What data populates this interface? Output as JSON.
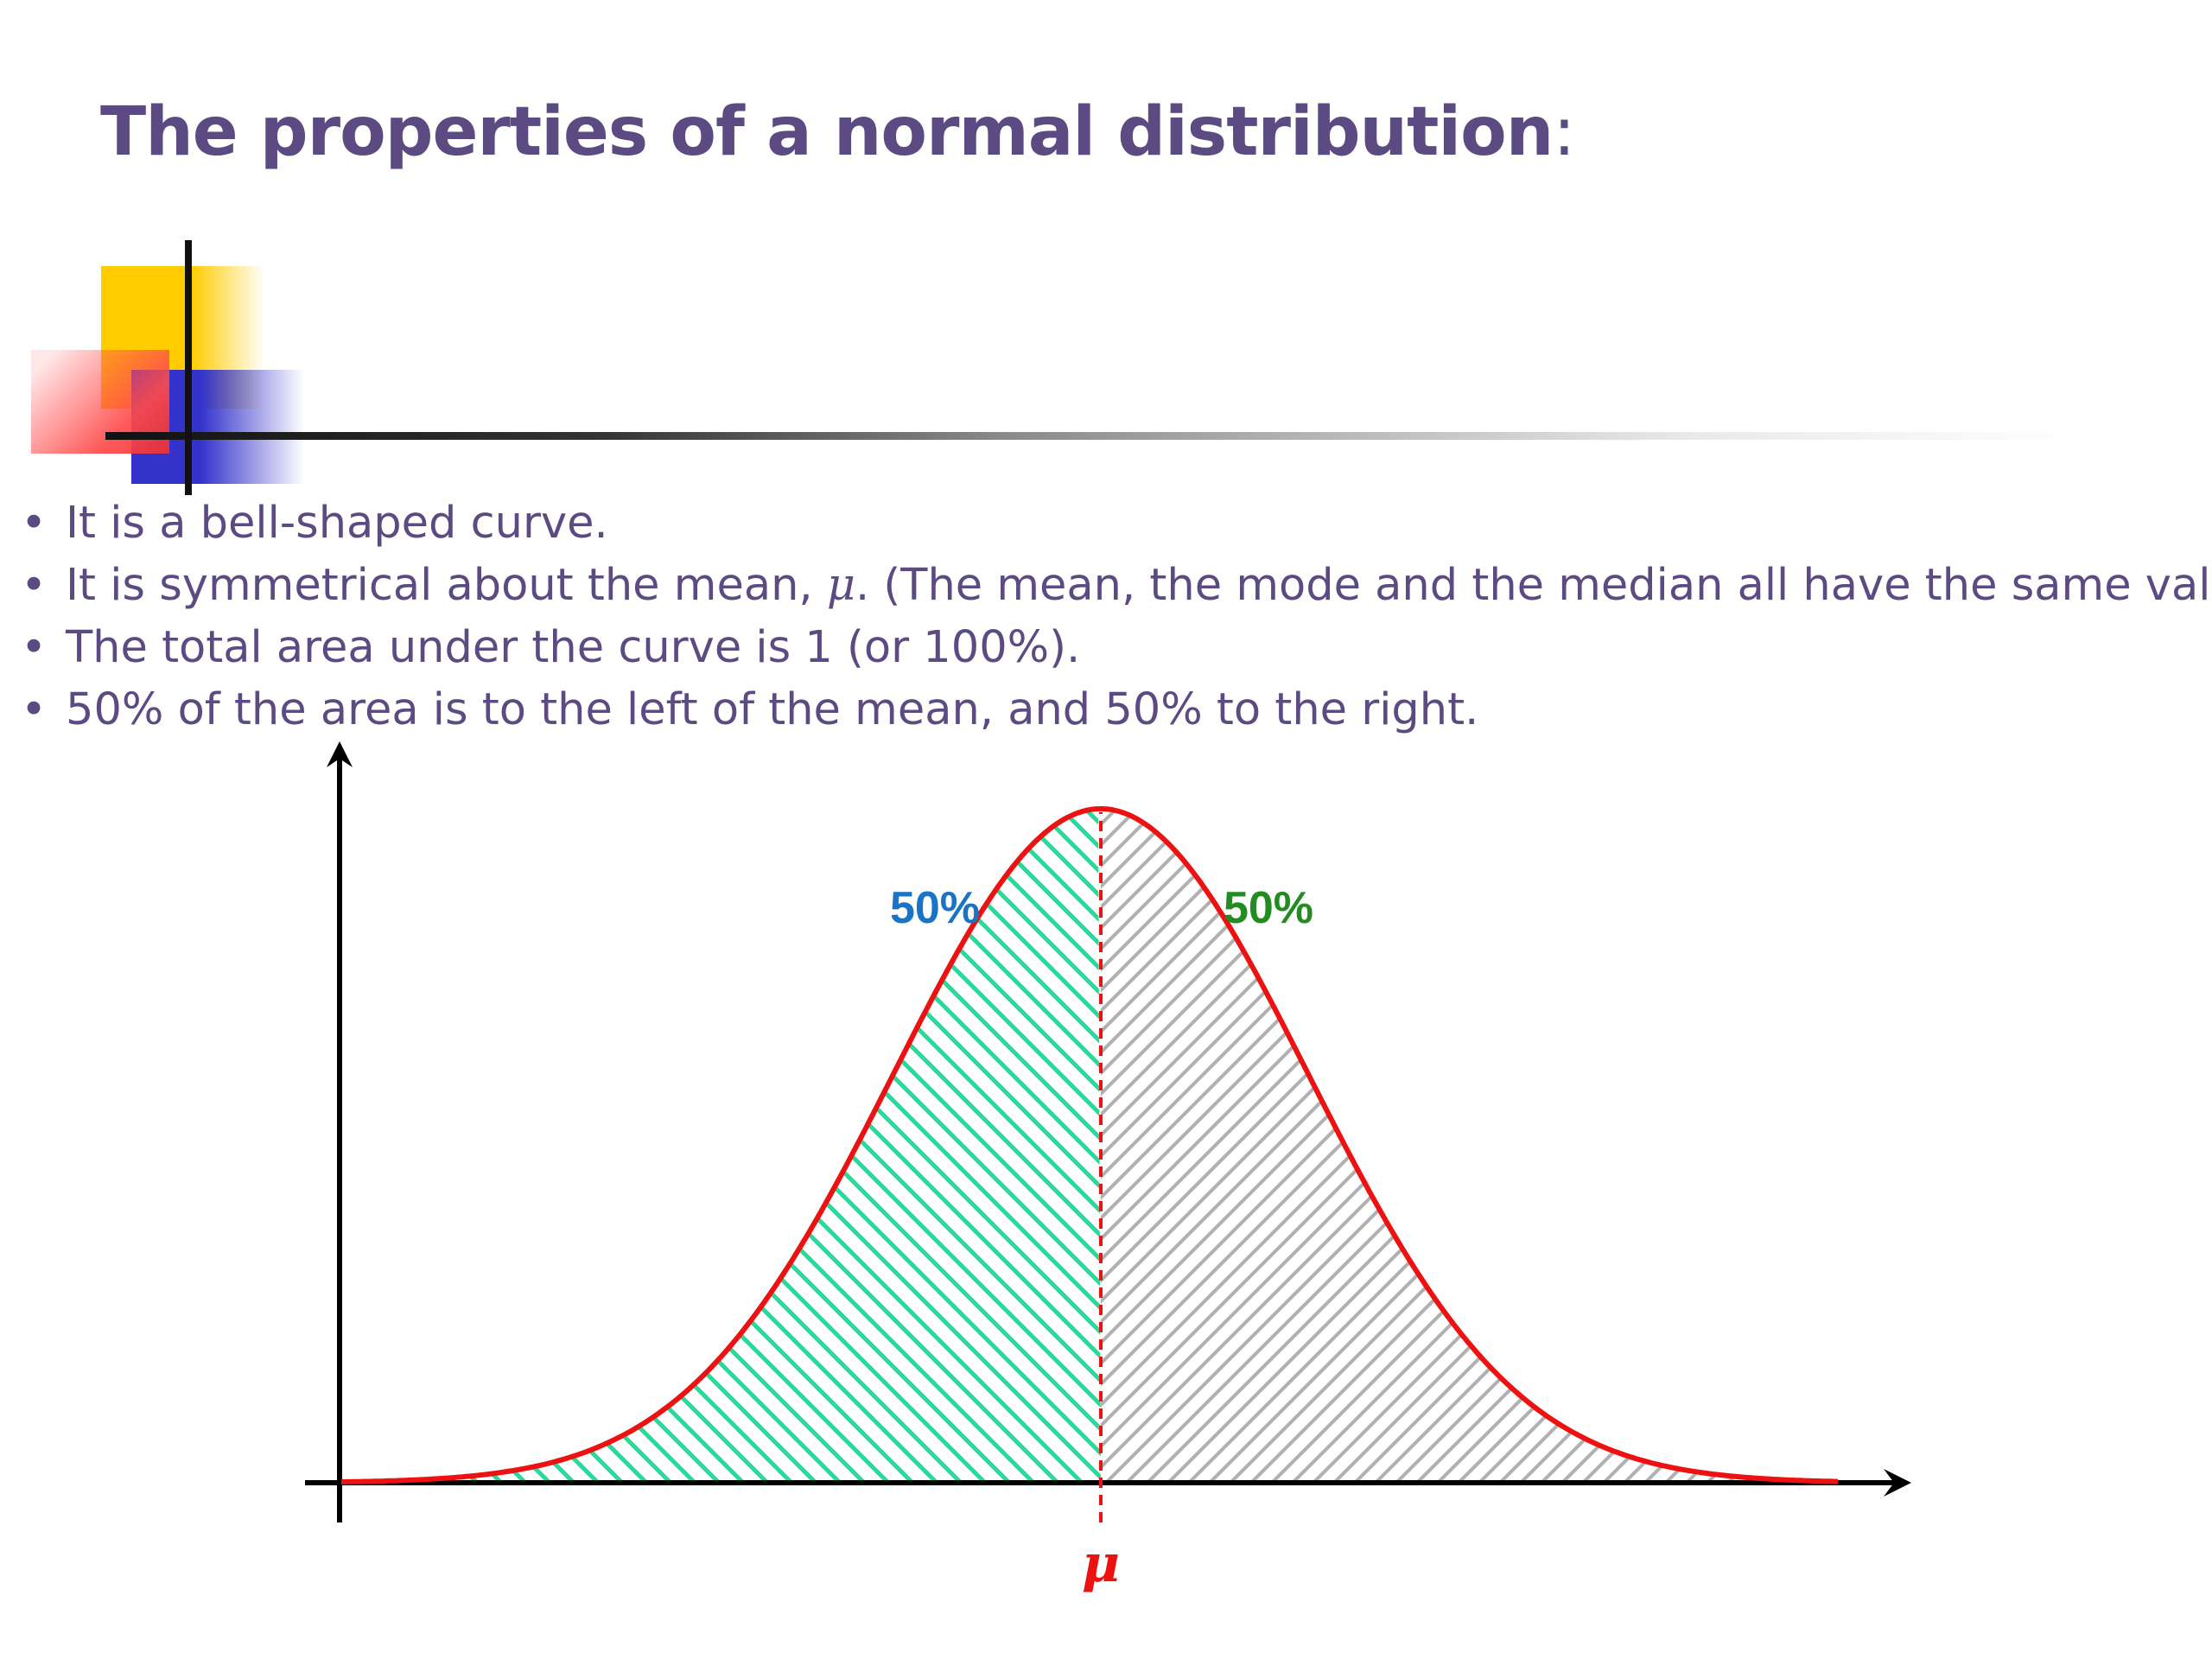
{
  "slide": {
    "title": "The properties of a normal distribution",
    "title_punct": ":",
    "bullets": [
      {
        "pre": "It is a bell-shaped curve.",
        "mu": "",
        "post": ""
      },
      {
        "pre": "It is symmetrical about the mean, ",
        "mu": "μ",
        "post": ".  (The mean, the mode and the median all have the same value)."
      },
      {
        "pre": "The total area under the curve is 1 (or 100%).",
        "mu": "",
        "post": ""
      },
      {
        "pre": "50% of the area is to the left of the mean, and 50% to the right.",
        "mu": "",
        "post": ""
      }
    ]
  },
  "diagram": {
    "type": "normal-distribution",
    "left_area_label": "50%",
    "right_area_label": "50%",
    "mean_label": "μ",
    "colors": {
      "curve": "#ee1111",
      "left_hatch": "#22dd99",
      "right_hatch": "#b0b0b0",
      "left_label": "#1a73c4",
      "right_label": "#228B22",
      "mean": "#ee1111",
      "axis": "#000000"
    }
  }
}
